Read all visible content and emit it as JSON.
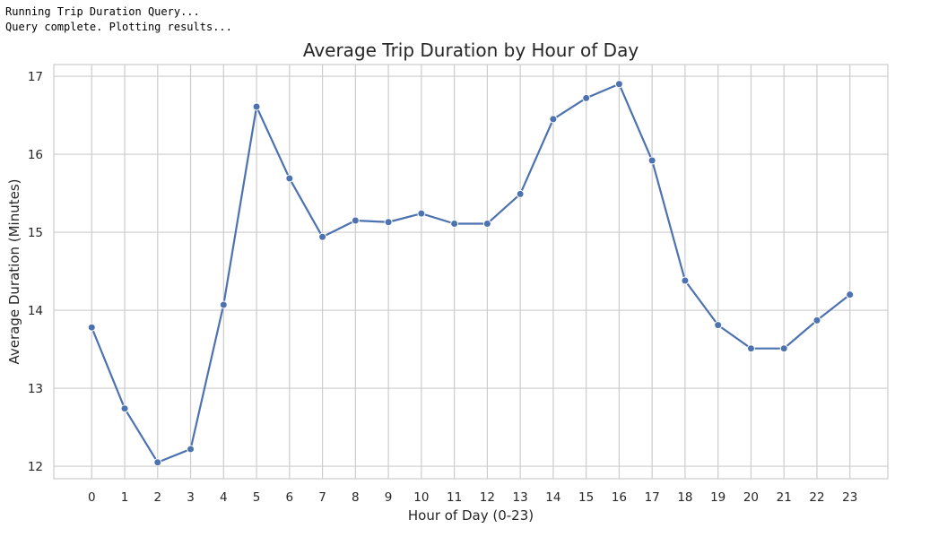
{
  "console": {
    "lines": [
      "Running Trip Duration Query...",
      "Query complete. Plotting results..."
    ]
  },
  "colors": {
    "line": "#4c72b0",
    "grid": "#cccccc",
    "axes_border": "#cccccc",
    "text": "#262626"
  },
  "chart_data": {
    "type": "line",
    "title": "Average Trip Duration by Hour of Day",
    "xlabel": "Hour of Day (0-23)",
    "ylabel": "Average Duration (Minutes)",
    "x": [
      0,
      1,
      2,
      3,
      4,
      5,
      6,
      7,
      8,
      9,
      10,
      11,
      12,
      13,
      14,
      15,
      16,
      17,
      18,
      19,
      20,
      21,
      22,
      23
    ],
    "values": [
      13.78,
      12.74,
      12.05,
      12.22,
      14.07,
      16.61,
      15.69,
      14.94,
      15.15,
      15.13,
      15.24,
      15.11,
      15.11,
      15.49,
      16.45,
      16.72,
      16.9,
      15.92,
      14.38,
      13.81,
      13.51,
      13.51,
      13.87,
      14.2
    ],
    "xticks": [
      "0",
      "1",
      "2",
      "3",
      "4",
      "5",
      "6",
      "7",
      "8",
      "9",
      "10",
      "11",
      "12",
      "13",
      "14",
      "15",
      "16",
      "17",
      "18",
      "19",
      "20",
      "21",
      "22",
      "23"
    ],
    "yticks": [
      "12",
      "13",
      "14",
      "15",
      "16",
      "17"
    ],
    "ylim": [
      11.84,
      17.15
    ],
    "xlim": [
      -1.15,
      24.15
    ],
    "grid": true,
    "markers": true
  }
}
